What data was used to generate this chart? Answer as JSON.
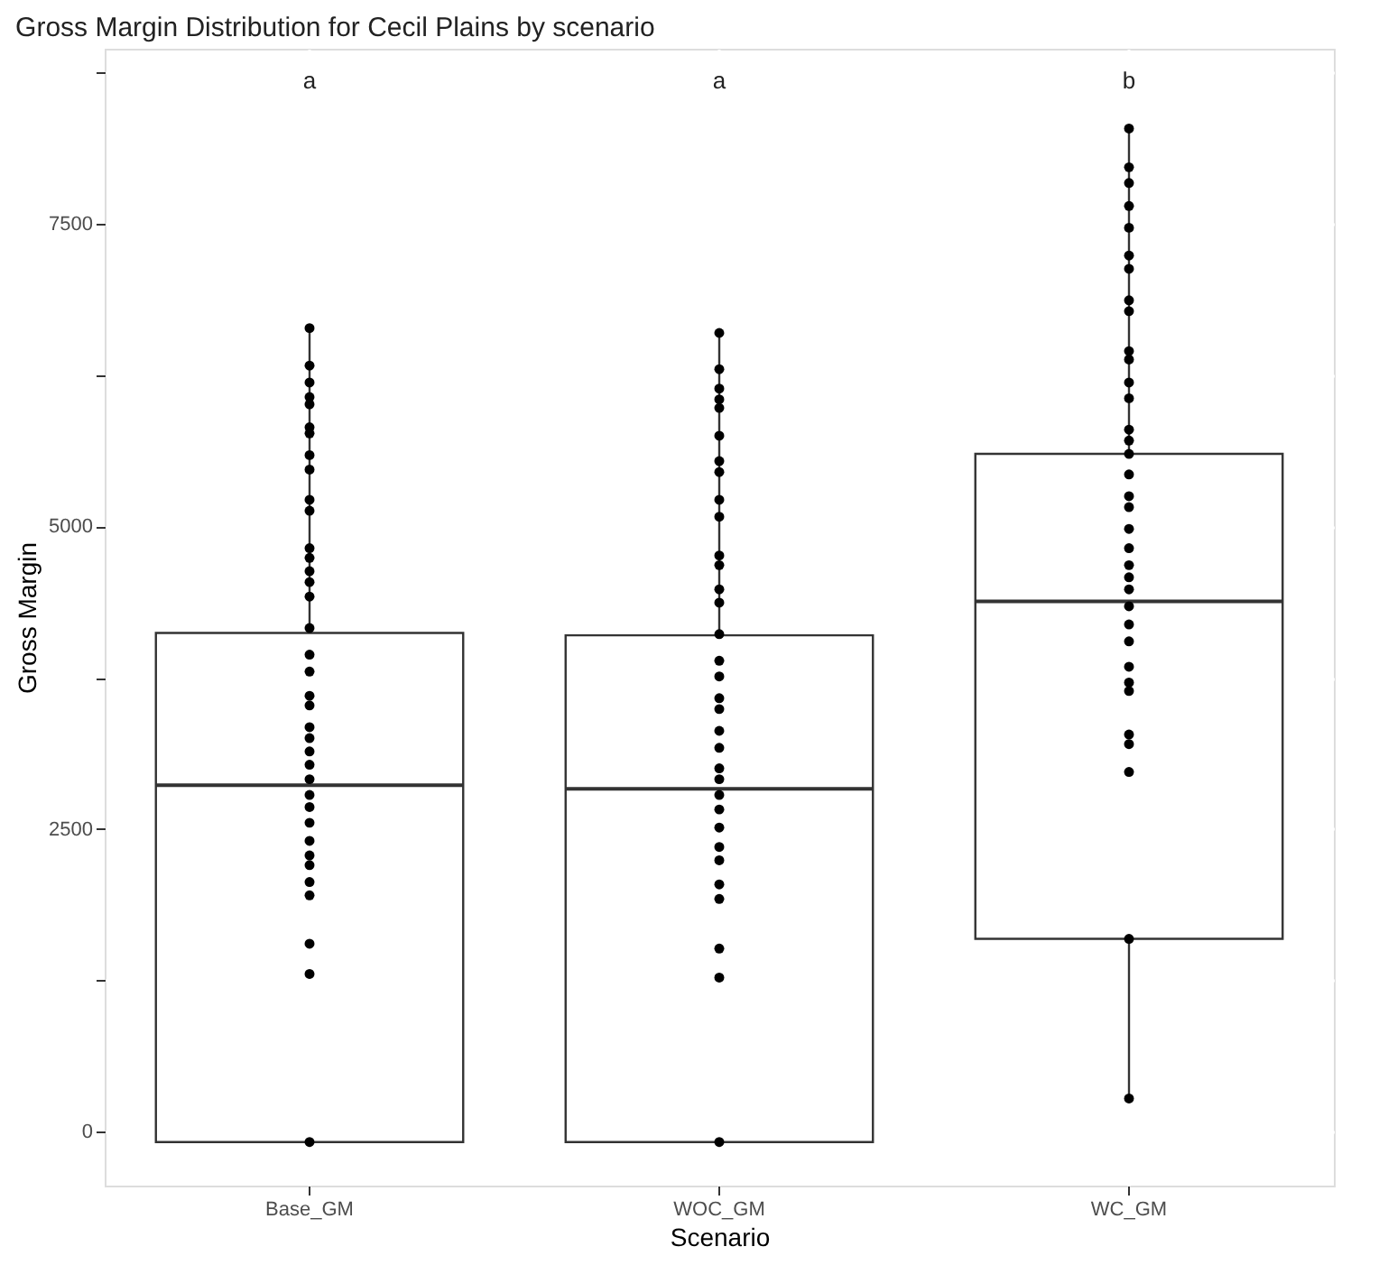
{
  "chart_data": {
    "type": "box",
    "title": "Gross Margin Distribution for Cecil Plains  by scenario",
    "xlabel": "Scenario",
    "ylabel": "Gross Margin",
    "categories": [
      "Base_GM",
      "WOC_GM",
      "WC_GM"
    ],
    "boxes": [
      {
        "low": -90,
        "q1": -90,
        "median": 2860,
        "q3": 4120,
        "high": 6640
      },
      {
        "low": -90,
        "q1": -90,
        "median": 2830,
        "q3": 4100,
        "high": 6600
      },
      {
        "low": 270,
        "q1": 1590,
        "median": 4380,
        "q3": 5600,
        "high": 8290
      }
    ],
    "series": [
      {
        "type": "scatter",
        "color": "#000000",
        "x": [
          "Base_GM",
          "Base_GM",
          "Base_GM",
          "Base_GM",
          "Base_GM",
          "Base_GM",
          "Base_GM",
          "Base_GM",
          "Base_GM",
          "Base_GM",
          "Base_GM",
          "Base_GM",
          "Base_GM",
          "Base_GM",
          "Base_GM",
          "Base_GM",
          "Base_GM",
          "Base_GM",
          "Base_GM",
          "Base_GM",
          "Base_GM",
          "Base_GM",
          "Base_GM",
          "Base_GM",
          "Base_GM",
          "Base_GM",
          "Base_GM",
          "Base_GM",
          "Base_GM",
          "Base_GM",
          "Base_GM",
          "Base_GM",
          "Base_GM",
          "Base_GM",
          "Base_GM",
          "Base_GM",
          "Base_GM"
        ],
        "values": [
          6640,
          6330,
          6190,
          6070,
          6010,
          5820,
          5770,
          5590,
          5470,
          5220,
          5130,
          4820,
          4740,
          4630,
          4540,
          4420,
          4160,
          3940,
          3800,
          3600,
          3520,
          3340,
          3250,
          3140,
          3030,
          2910,
          2780,
          2680,
          2550,
          2400,
          2280,
          2200,
          2060,
          1950,
          1550,
          1300,
          -90
        ]
      },
      {
        "type": "scatter",
        "color": "#000000",
        "x": [
          "WOC_GM",
          "WOC_GM",
          "WOC_GM",
          "WOC_GM",
          "WOC_GM",
          "WOC_GM",
          "WOC_GM",
          "WOC_GM",
          "WOC_GM",
          "WOC_GM",
          "WOC_GM",
          "WOC_GM",
          "WOC_GM",
          "WOC_GM",
          "WOC_GM",
          "WOC_GM",
          "WOC_GM",
          "WOC_GM",
          "WOC_GM",
          "WOC_GM",
          "WOC_GM",
          "WOC_GM",
          "WOC_GM",
          "WOC_GM",
          "WOC_GM",
          "WOC_GM",
          "WOC_GM",
          "WOC_GM",
          "WOC_GM",
          "WOC_GM",
          "WOC_GM",
          "WOC_GM",
          "WOC_GM"
        ],
        "values": [
          6600,
          6300,
          6140,
          6050,
          5980,
          5750,
          5540,
          5450,
          5220,
          5080,
          4760,
          4680,
          4480,
          4370,
          4110,
          3890,
          3760,
          3580,
          3490,
          3310,
          3170,
          3000,
          2910,
          2780,
          2660,
          2510,
          2350,
          2240,
          2040,
          1920,
          1510,
          1270,
          -90
        ]
      },
      {
        "type": "scatter",
        "color": "#000000",
        "x": [
          "WC_GM",
          "WC_GM",
          "WC_GM",
          "WC_GM",
          "WC_GM",
          "WC_GM",
          "WC_GM",
          "WC_GM",
          "WC_GM",
          "WC_GM",
          "WC_GM",
          "WC_GM",
          "WC_GM",
          "WC_GM",
          "WC_GM",
          "WC_GM",
          "WC_GM",
          "WC_GM",
          "WC_GM",
          "WC_GM",
          "WC_GM",
          "WC_GM",
          "WC_GM",
          "WC_GM",
          "WC_GM",
          "WC_GM",
          "WC_GM",
          "WC_GM",
          "WC_GM",
          "WC_GM",
          "WC_GM",
          "WC_GM",
          "WC_GM",
          "WC_GM",
          "WC_GM"
        ],
        "values": [
          8290,
          7970,
          7840,
          7650,
          7470,
          7240,
          7130,
          6870,
          6780,
          6450,
          6380,
          6190,
          6060,
          5800,
          5710,
          5600,
          5430,
          5250,
          5160,
          4980,
          4820,
          4680,
          4580,
          4480,
          4340,
          4190,
          4050,
          3840,
          3710,
          3640,
          3280,
          3200,
          2970,
          1590,
          270
        ]
      }
    ],
    "ylim": [
      -450,
      8950
    ],
    "yticks": [
      0,
      {
        "value": 1250,
        "label": null
      },
      2500,
      {
        "value": 3750,
        "label": null
      },
      5000,
      {
        "value": 6250,
        "label": null
      },
      7500,
      {
        "value": 8750,
        "label": null
      }
    ],
    "grid": true,
    "marker": "circle",
    "annotations": [
      "a",
      "a",
      "b"
    ]
  }
}
